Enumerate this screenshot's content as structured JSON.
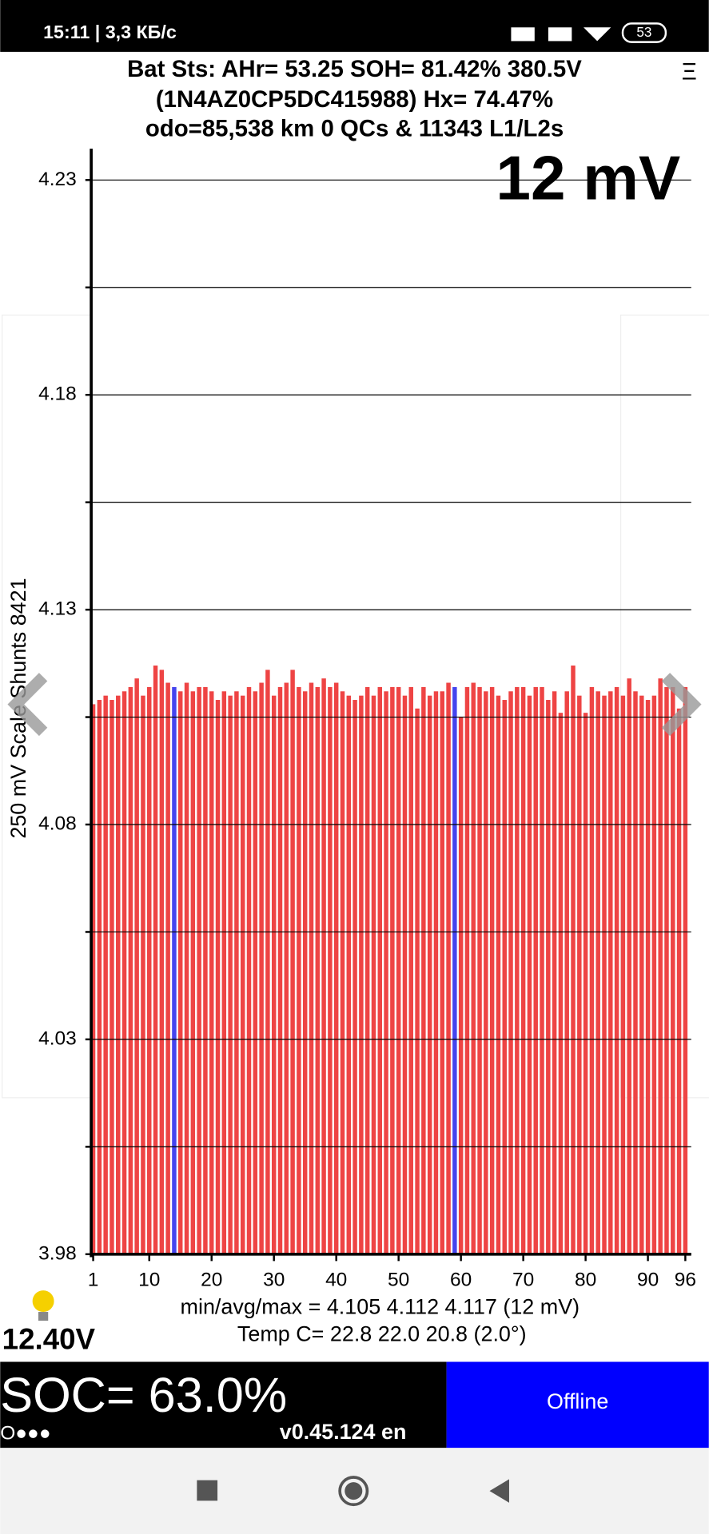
{
  "status_bar": {
    "time": "15:11 | 3,3 КБ/с",
    "battery": "53"
  },
  "header": {
    "lines": [
      "Bat Sts:  AHr= 53.25  SOH= 81.42%   380.5V",
      "(1N4AZ0CP5DC415988)   Hx= 74.47%",
      "odo=85,538 km 0 QCs & 11343 L1/L2s"
    ],
    "menu": "Ξ"
  },
  "chart_data": {
    "type": "bar",
    "annotation": "12 mV",
    "ylabel": "250 mV Scale  Shunts 8421",
    "x": [
      1,
      2,
      3,
      4,
      5,
      6,
      7,
      8,
      9,
      10,
      11,
      12,
      13,
      14,
      15,
      16,
      17,
      18,
      19,
      20,
      21,
      22,
      23,
      24,
      25,
      26,
      27,
      28,
      29,
      30,
      31,
      32,
      33,
      34,
      35,
      36,
      37,
      38,
      39,
      40,
      41,
      42,
      43,
      44,
      45,
      46,
      47,
      48,
      49,
      50,
      51,
      52,
      53,
      54,
      55,
      56,
      57,
      58,
      59,
      60,
      61,
      62,
      63,
      64,
      65,
      66,
      67,
      68,
      69,
      70,
      71,
      72,
      73,
      74,
      75,
      76,
      77,
      78,
      79,
      80,
      81,
      82,
      83,
      84,
      85,
      86,
      87,
      88,
      89,
      90,
      91,
      92,
      93,
      94,
      95,
      96
    ],
    "values": [
      4.108,
      4.109,
      4.11,
      4.109,
      4.11,
      4.111,
      4.112,
      4.114,
      4.11,
      4.112,
      4.117,
      4.116,
      4.113,
      4.112,
      4.111,
      4.113,
      4.111,
      4.112,
      4.112,
      4.111,
      4.109,
      4.111,
      4.11,
      4.111,
      4.11,
      4.112,
      4.111,
      4.113,
      4.116,
      4.11,
      4.112,
      4.113,
      4.116,
      4.112,
      4.111,
      4.113,
      4.112,
      4.114,
      4.112,
      4.113,
      4.111,
      4.11,
      4.109,
      4.11,
      4.112,
      4.11,
      4.112,
      4.111,
      4.112,
      4.112,
      4.11,
      4.112,
      4.107,
      4.112,
      4.11,
      4.111,
      4.111,
      4.113,
      4.112,
      4.105,
      4.112,
      4.113,
      4.112,
      4.111,
      4.112,
      4.11,
      4.109,
      4.111,
      4.112,
      4.112,
      4.11,
      4.112,
      4.112,
      4.109,
      4.111,
      4.106,
      4.111,
      4.117,
      4.11,
      4.106,
      4.112,
      4.111,
      4.11,
      4.111,
      4.112,
      4.11,
      4.114,
      4.111,
      4.11,
      4.109,
      4.11,
      4.114,
      4.112,
      4.112,
      4.107,
      4.112
    ],
    "colors": [
      "#ee4444",
      "#ee4444",
      "#ee4444",
      "#ee4444",
      "#ee4444",
      "#ee4444",
      "#ee4444",
      "#ee4444",
      "#ee4444",
      "#ee4444",
      "#ee4444",
      "#ee4444",
      "#ee4444",
      "#4444ee",
      "#ee4444",
      "#ee4444",
      "#ee4444",
      "#ee4444",
      "#ee4444",
      "#ee4444",
      "#ee4444",
      "#ee4444",
      "#ee4444",
      "#ee4444",
      "#ee4444",
      "#ee4444",
      "#ee4444",
      "#ee4444",
      "#ee4444",
      "#ee4444",
      "#ee4444",
      "#ee4444",
      "#ee4444",
      "#ee4444",
      "#ee4444",
      "#ee4444",
      "#ee4444",
      "#ee4444",
      "#ee4444",
      "#ee4444",
      "#ee4444",
      "#ee4444",
      "#ee4444",
      "#ee4444",
      "#ee4444",
      "#ee4444",
      "#ee4444",
      "#ee4444",
      "#ee4444",
      "#ee4444",
      "#ee4444",
      "#ee4444",
      "#ee4444",
      "#ee4444",
      "#ee4444",
      "#ee4444",
      "#ee4444",
      "#ee4444",
      "#4444ee",
      "#ee4444",
      "#ee4444",
      "#ee4444",
      "#ee4444",
      "#ee4444",
      "#ee4444",
      "#ee4444",
      "#ee4444",
      "#ee4444",
      "#ee4444",
      "#ee4444",
      "#ee4444",
      "#ee4444",
      "#ee4444",
      "#ee4444",
      "#ee4444",
      "#ee4444",
      "#ee4444",
      "#ee4444",
      "#ee4444",
      "#ee4444",
      "#ee4444",
      "#ee4444",
      "#ee4444",
      "#ee4444",
      "#ee4444",
      "#ee4444",
      "#ee4444",
      "#ee4444",
      "#ee4444",
      "#ee4444",
      "#ee4444",
      "#ee4444",
      "#ee4444",
      "#ee4444",
      "#ee4444",
      "#ee4444"
    ],
    "xlim": [
      1,
      96
    ],
    "xticks": [
      1,
      10,
      20,
      30,
      40,
      50,
      60,
      70,
      80,
      90,
      96
    ],
    "ylim": [
      3.98,
      4.23
    ],
    "yticks": [
      3.98,
      4.03,
      4.08,
      4.13,
      4.18,
      4.23
    ],
    "minor_yticks": [
      4.005,
      4.055,
      4.105,
      4.155,
      4.205
    ],
    "grid": true
  },
  "footer": {
    "stats": [
      "min/avg/max = 4.105 4.112 4.117  (12 mV)",
      "Temp C= 22.8  22.0  20.8  (2.0°)"
    ],
    "aux_voltage": "12.40V",
    "soc": "SOC= 63.0%",
    "dots": "O●●●",
    "version": "v0.45.124 en",
    "status": "Offline"
  }
}
